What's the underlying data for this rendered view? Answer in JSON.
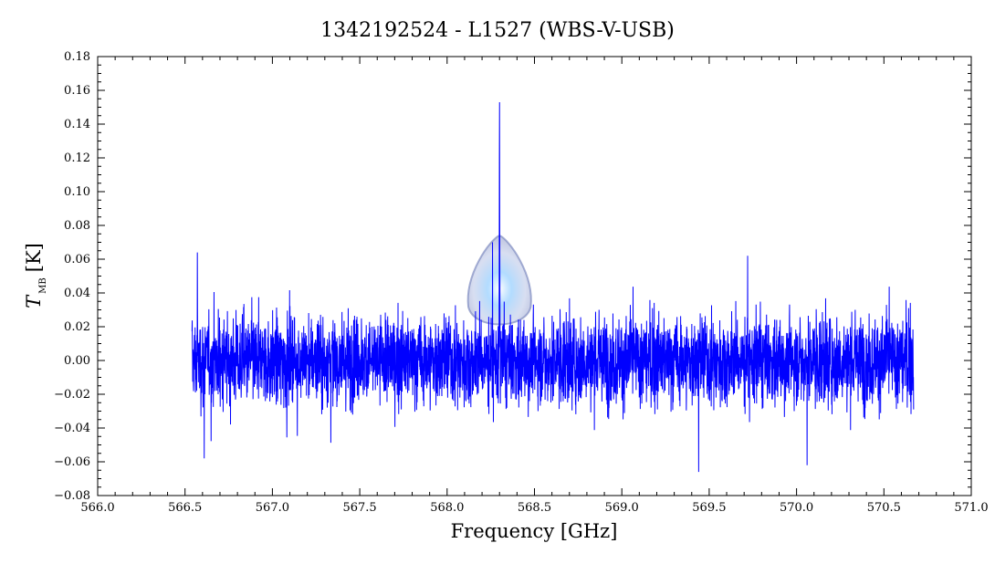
{
  "chart_data": {
    "type": "line",
    "title": "1342192524 - L1527 (WBS-V-USB)",
    "xlabel": "Frequency [GHz]",
    "ylabel_main": "T",
    "ylabel_sub": "MB",
    "ylabel_unit": "[K]",
    "xlim": [
      566.0,
      571.0
    ],
    "ylim": [
      -0.08,
      0.18
    ],
    "x_ticks": [
      "566.0",
      "566.5",
      "567.0",
      "567.5",
      "568.0",
      "568.5",
      "569.0",
      "569.5",
      "570.0",
      "570.5",
      "571.0"
    ],
    "y_ticks": [
      "−0.08",
      "−0.06",
      "−0.04",
      "−0.02",
      "0.00",
      "0.02",
      "0.04",
      "0.06",
      "0.08",
      "0.10",
      "0.12",
      "0.14",
      "0.16",
      "0.18"
    ],
    "x_tick_values": [
      566.0,
      566.5,
      567.0,
      567.5,
      568.0,
      568.5,
      569.0,
      569.5,
      570.0,
      570.5,
      571.0
    ],
    "y_tick_values": [
      -0.08,
      -0.06,
      -0.04,
      -0.02,
      0.0,
      0.02,
      0.04,
      0.06,
      0.08,
      0.1,
      0.12,
      0.14,
      0.16,
      0.18
    ],
    "series": [
      {
        "color": "#0000ff",
        "x_start": 566.54,
        "x_end": 570.67,
        "baseline": 0.0,
        "noise_rms": 0.013,
        "peak": {
          "x": 568.3,
          "y": 0.153
        },
        "notable_points": [
          {
            "x": 566.61,
            "y": -0.058
          },
          {
            "x": 566.57,
            "y": 0.064
          },
          {
            "x": 568.26,
            "y": 0.07
          },
          {
            "x": 569.44,
            "y": -0.066
          },
          {
            "x": 570.06,
            "y": -0.062
          },
          {
            "x": 569.72,
            "y": 0.062
          }
        ]
      }
    ],
    "grid": false,
    "legend": "none"
  },
  "logo": {
    "name": "herschel-droplet-watermark",
    "x_center": 568.3,
    "y_top": 0.074,
    "y_bottom": 0.02
  }
}
